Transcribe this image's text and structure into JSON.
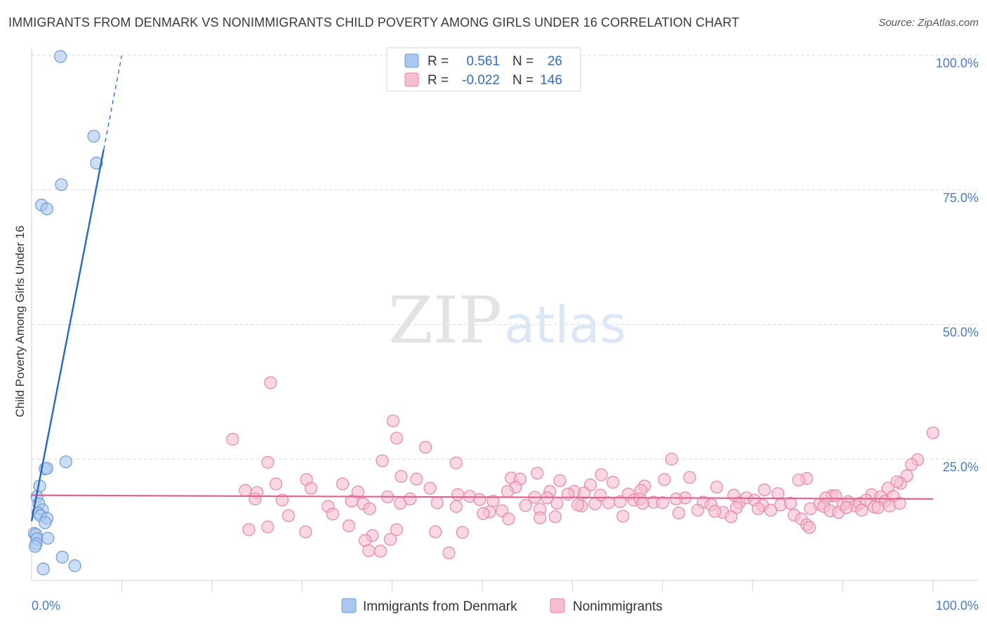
{
  "title": "IMMIGRANTS FROM DENMARK VS NONIMMIGRANTS CHILD POVERTY AMONG GIRLS UNDER 16 CORRELATION CHART",
  "source": "Source: ZipAtlas.com",
  "watermark": {
    "zip": "ZIP",
    "atlas": "atlas"
  },
  "colors": {
    "blue_fill": "#aac8ef",
    "blue_stroke": "#6d9ad9",
    "blue_line": "#2467d1",
    "pink_fill": "#f6bcd0",
    "pink_stroke": "#e886a8",
    "pink_line": "#e2628f",
    "grid": "#d9d9d9",
    "tick_text": "#4a7cc9"
  },
  "chart_data": {
    "type": "scatter",
    "title": "IMMIGRANTS FROM DENMARK VS NONIMMIGRANTS CHILD POVERTY AMONG GIRLS UNDER 16 CORRELATION CHART",
    "xlabel": "",
    "ylabel": "Child Poverty Among Girls Under 16",
    "xlim": [
      0,
      100
    ],
    "ylim": [
      0,
      100
    ],
    "x_tick_labels": {
      "left": "0.0%",
      "right": "100.0%"
    },
    "y_ticks": [
      25,
      50,
      75,
      100
    ],
    "y_tick_labels": [
      "25.0%",
      "50.0%",
      "75.0%",
      "100.0%"
    ],
    "grid": true,
    "legend": {
      "position": "top-center",
      "rows": [
        {
          "r_label": "R =",
          "r_value": "0.561",
          "n_label": "N =",
          "n_value": "26"
        },
        {
          "r_label": "R =",
          "r_value": "-0.022",
          "n_label": "N =",
          "n_value": "146"
        }
      ]
    },
    "bottom_legend": [
      "Immigrants from Denmark",
      "Nonimmigrants"
    ],
    "series": [
      {
        "name": "Immigrants from Denmark",
        "color": "#aac8ef",
        "trend": {
          "x0": 0,
          "y0": 13.5,
          "x1": 8.0,
          "y1": 82.5,
          "dash_to_x": 10.0,
          "dash_to_y": 100.0
        },
        "points": [
          [
            3.2,
            99.8
          ],
          [
            6.9,
            85.0
          ],
          [
            7.2,
            80.0
          ],
          [
            3.3,
            76.0
          ],
          [
            1.1,
            72.2
          ],
          [
            1.7,
            71.5
          ],
          [
            3.8,
            24.5
          ],
          [
            1.5,
            23.2
          ],
          [
            1.7,
            23.3
          ],
          [
            0.9,
            20.0
          ],
          [
            0.6,
            18.0
          ],
          [
            0.8,
            16.7
          ],
          [
            1.2,
            15.6
          ],
          [
            0.7,
            15.0
          ],
          [
            1.0,
            14.5
          ],
          [
            1.7,
            14.0
          ],
          [
            1.5,
            13.2
          ],
          [
            0.3,
            11.2
          ],
          [
            0.5,
            11.0
          ],
          [
            0.6,
            10.2
          ],
          [
            1.8,
            10.3
          ],
          [
            0.5,
            9.3
          ],
          [
            0.4,
            8.8
          ],
          [
            3.4,
            6.8
          ],
          [
            1.3,
            4.6
          ],
          [
            4.8,
            5.2
          ]
        ]
      },
      {
        "name": "Nonimmigrants",
        "color": "#f6bcd0",
        "trend": {
          "x0": 0,
          "y0": 18.3,
          "x1": 100,
          "y1": 17.6
        },
        "points": [
          [
            26.5,
            39.2
          ],
          [
            40.1,
            32.1
          ],
          [
            22.3,
            28.7
          ],
          [
            43.7,
            27.2
          ],
          [
            40.5,
            28.9
          ],
          [
            100.0,
            29.9
          ],
          [
            98.3,
            24.9
          ],
          [
            38.9,
            24.7
          ],
          [
            47.1,
            24.3
          ],
          [
            26.2,
            24.4
          ],
          [
            71.0,
            25.0
          ],
          [
            97.6,
            24.0
          ],
          [
            68.0,
            20.0
          ],
          [
            70.2,
            21.2
          ],
          [
            56.1,
            22.4
          ],
          [
            63.2,
            22.1
          ],
          [
            73.0,
            21.6
          ],
          [
            86.0,
            21.4
          ],
          [
            42.7,
            21.3
          ],
          [
            41.0,
            21.8
          ],
          [
            53.2,
            21.5
          ],
          [
            54.2,
            21.3
          ],
          [
            85.1,
            21.1
          ],
          [
            57.5,
            19.0
          ],
          [
            27.1,
            20.4
          ],
          [
            58.6,
            21.0
          ],
          [
            30.5,
            21.2
          ],
          [
            31.0,
            19.6
          ],
          [
            62.0,
            20.2
          ],
          [
            34.5,
            20.4
          ],
          [
            53.7,
            19.8
          ],
          [
            44.2,
            19.6
          ],
          [
            76.0,
            19.8
          ],
          [
            97.1,
            21.9
          ],
          [
            96.4,
            20.5
          ],
          [
            96.0,
            20.8
          ],
          [
            95.0,
            19.6
          ],
          [
            23.7,
            19.2
          ],
          [
            25.0,
            18.8
          ],
          [
            36.2,
            18.9
          ],
          [
            52.8,
            19.0
          ],
          [
            63.1,
            18.3
          ],
          [
            64.5,
            20.7
          ],
          [
            60.2,
            19.0
          ],
          [
            61.3,
            18.7
          ],
          [
            39.5,
            18.0
          ],
          [
            47.3,
            18.4
          ],
          [
            48.6,
            18.1
          ],
          [
            66.2,
            18.5
          ],
          [
            67.6,
            19.2
          ],
          [
            72.5,
            17.8
          ],
          [
            77.9,
            18.3
          ],
          [
            81.3,
            19.3
          ],
          [
            82.8,
            18.6
          ],
          [
            88.8,
            18.2
          ],
          [
            89.2,
            18.2
          ],
          [
            93.2,
            18.4
          ],
          [
            94.2,
            18.0
          ],
          [
            24.8,
            17.6
          ],
          [
            27.8,
            17.4
          ],
          [
            35.5,
            17.2
          ],
          [
            40.9,
            16.8
          ],
          [
            42.0,
            17.6
          ],
          [
            45.0,
            16.9
          ],
          [
            49.7,
            17.5
          ],
          [
            51.2,
            17.2
          ],
          [
            54.8,
            16.4
          ],
          [
            55.8,
            17.9
          ],
          [
            57.2,
            17.8
          ],
          [
            59.5,
            18.5
          ],
          [
            61.0,
            16.3
          ],
          [
            62.5,
            16.7
          ],
          [
            64.0,
            16.9
          ],
          [
            65.3,
            17.1
          ],
          [
            66.8,
            17.4
          ],
          [
            67.5,
            17.6
          ],
          [
            69.0,
            17.0
          ],
          [
            70.0,
            16.9
          ],
          [
            71.5,
            17.6
          ],
          [
            74.5,
            17.0
          ],
          [
            75.4,
            16.5
          ],
          [
            78.5,
            16.9
          ],
          [
            79.3,
            17.8
          ],
          [
            80.2,
            17.4
          ],
          [
            83.1,
            16.5
          ],
          [
            84.2,
            16.8
          ],
          [
            87.4,
            16.6
          ],
          [
            88.1,
            17.8
          ],
          [
            90.0,
            16.5
          ],
          [
            90.6,
            17.1
          ],
          [
            91.4,
            16.3
          ],
          [
            91.9,
            16.8
          ],
          [
            92.6,
            17.4
          ],
          [
            93.5,
            16.1
          ],
          [
            94.7,
            17.2
          ],
          [
            95.6,
            18.1
          ],
          [
            32.9,
            16.2
          ],
          [
            36.8,
            16.7
          ],
          [
            37.5,
            15.8
          ],
          [
            52.2,
            15.4
          ],
          [
            56.4,
            15.7
          ],
          [
            58.3,
            16.8
          ],
          [
            60.6,
            16.5
          ],
          [
            73.9,
            15.5
          ],
          [
            76.7,
            15.1
          ],
          [
            78.2,
            16.0
          ],
          [
            81.1,
            16.4
          ],
          [
            82.0,
            15.5
          ],
          [
            84.6,
            14.6
          ],
          [
            86.4,
            15.8
          ],
          [
            87.9,
            16.2
          ],
          [
            88.6,
            15.4
          ],
          [
            89.5,
            15.1
          ],
          [
            90.4,
            16.0
          ],
          [
            92.1,
            15.5
          ],
          [
            93.9,
            16.0
          ],
          [
            95.2,
            16.3
          ],
          [
            96.3,
            16.8
          ],
          [
            71.8,
            15.0
          ],
          [
            75.8,
            15.3
          ],
          [
            33.4,
            14.8
          ],
          [
            47.1,
            16.2
          ],
          [
            50.8,
            15.2
          ],
          [
            52.9,
            13.9
          ],
          [
            65.6,
            14.4
          ],
          [
            67.8,
            16.8
          ],
          [
            80.6,
            15.8
          ],
          [
            85.4,
            13.9
          ],
          [
            86.0,
            12.8
          ],
          [
            86.3,
            12.3
          ],
          [
            77.6,
            14.3
          ],
          [
            28.5,
            14.5
          ],
          [
            56.4,
            14.1
          ],
          [
            58.1,
            14.3
          ],
          [
            50.1,
            14.9
          ],
          [
            35.2,
            12.6
          ],
          [
            24.1,
            11.9
          ],
          [
            26.2,
            12.4
          ],
          [
            40.5,
            11.9
          ],
          [
            44.8,
            11.5
          ],
          [
            47.8,
            11.4
          ],
          [
            30.4,
            11.5
          ],
          [
            37.8,
            10.8
          ],
          [
            39.8,
            10.1
          ],
          [
            37.0,
            9.9
          ],
          [
            38.7,
            7.9
          ],
          [
            37.4,
            8.0
          ],
          [
            46.3,
            7.6
          ]
        ]
      }
    ]
  }
}
